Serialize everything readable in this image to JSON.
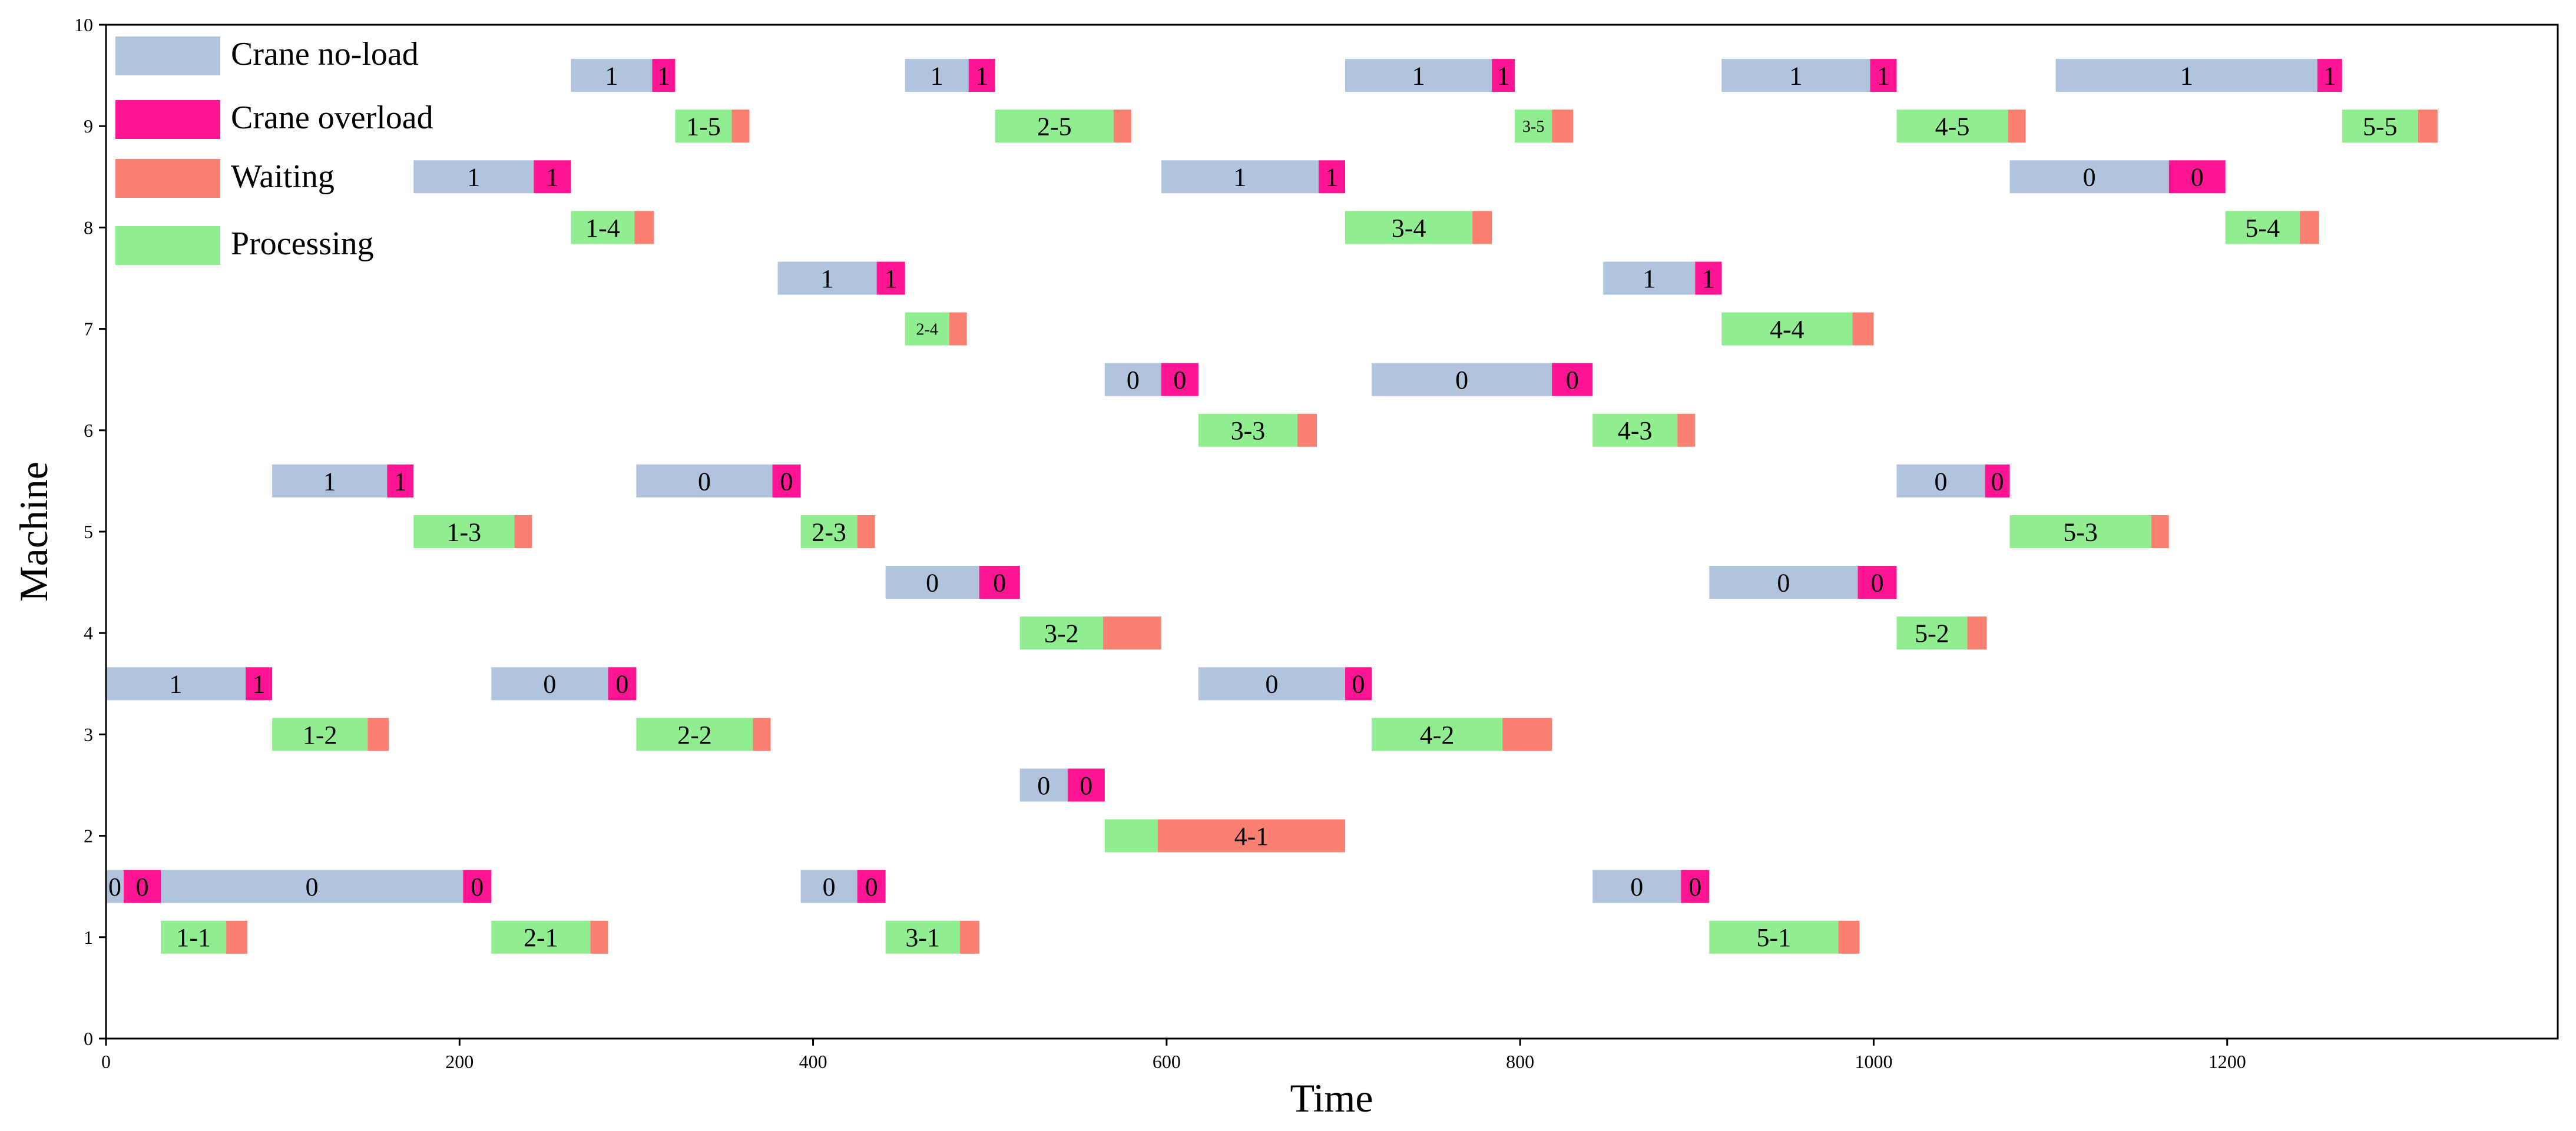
{
  "chart_data": {
    "type": "gantt",
    "title": "",
    "xlabel": "Time",
    "ylabel": "Machine",
    "xlim": [
      0,
      1387
    ],
    "ylim": [
      0,
      10
    ],
    "x_ticks": [
      "0",
      "200",
      "400",
      "600",
      "800",
      "1000",
      "1200"
    ],
    "y_ticks": [
      "0",
      "1",
      "2",
      "3",
      "4",
      "5",
      "6",
      "7",
      "8",
      "9",
      "10"
    ],
    "legend": [
      {
        "key": "no_load",
        "label": "Crane no-load",
        "color": "#b0c4de"
      },
      {
        "key": "overload",
        "label": "Crane overload",
        "color": "#ff1493"
      },
      {
        "key": "waiting",
        "label": "Waiting",
        "color": "#fa8072"
      },
      {
        "key": "processing",
        "label": "Processing",
        "color": "#90ee90"
      }
    ],
    "bars": [
      {
        "cat": "processing",
        "machine": 1,
        "start": 31,
        "end": 68,
        "label": "1-1"
      },
      {
        "cat": "waiting",
        "machine": 1,
        "start": 68,
        "end": 80,
        "label": ""
      },
      {
        "cat": "processing",
        "machine": 1,
        "start": 218,
        "end": 274,
        "label": "2-1"
      },
      {
        "cat": "waiting",
        "machine": 1,
        "start": 274,
        "end": 284,
        "label": ""
      },
      {
        "cat": "processing",
        "machine": 1,
        "start": 441,
        "end": 483,
        "label": "3-1"
      },
      {
        "cat": "waiting",
        "machine": 1,
        "start": 483,
        "end": 494,
        "label": ""
      },
      {
        "cat": "processing",
        "machine": 1,
        "start": 907,
        "end": 980,
        "label": "5-1"
      },
      {
        "cat": "waiting",
        "machine": 1,
        "start": 980,
        "end": 992,
        "label": ""
      },
      {
        "cat": "no_load",
        "machine": 1.5,
        "start": 0,
        "end": 10,
        "label": "0"
      },
      {
        "cat": "overload",
        "machine": 1.5,
        "start": 10,
        "end": 31,
        "label": "0"
      },
      {
        "cat": "no_load",
        "machine": 1.5,
        "start": 31,
        "end": 202,
        "label": "0"
      },
      {
        "cat": "overload",
        "machine": 1.5,
        "start": 202,
        "end": 218,
        "label": "0"
      },
      {
        "cat": "no_load",
        "machine": 1.5,
        "start": 393,
        "end": 425,
        "label": "0"
      },
      {
        "cat": "overload",
        "machine": 1.5,
        "start": 425,
        "end": 441,
        "label": "0"
      },
      {
        "cat": "no_load",
        "machine": 1.5,
        "start": 841,
        "end": 891,
        "label": "0"
      },
      {
        "cat": "overload",
        "machine": 1.5,
        "start": 891,
        "end": 907,
        "label": "0"
      },
      {
        "cat": "processing",
        "machine": 2,
        "start": 565,
        "end": 595,
        "label": ""
      },
      {
        "cat": "waiting",
        "machine": 2,
        "start": 595,
        "end": 701,
        "label": "4-1"
      },
      {
        "cat": "no_load",
        "machine": 2.5,
        "start": 517,
        "end": 544,
        "label": "0"
      },
      {
        "cat": "overload",
        "machine": 2.5,
        "start": 544,
        "end": 565,
        "label": "0"
      },
      {
        "cat": "processing",
        "machine": 3,
        "start": 94,
        "end": 148,
        "label": "1-2"
      },
      {
        "cat": "waiting",
        "machine": 3,
        "start": 148,
        "end": 160,
        "label": ""
      },
      {
        "cat": "processing",
        "machine": 3,
        "start": 300,
        "end": 366,
        "label": "2-2"
      },
      {
        "cat": "waiting",
        "machine": 3,
        "start": 366,
        "end": 376,
        "label": ""
      },
      {
        "cat": "processing",
        "machine": 3,
        "start": 716,
        "end": 790,
        "label": "4-2"
      },
      {
        "cat": "waiting",
        "machine": 3,
        "start": 790,
        "end": 818,
        "label": ""
      },
      {
        "cat": "no_load",
        "machine": 3.5,
        "start": 0,
        "end": 79,
        "label": "1"
      },
      {
        "cat": "overload",
        "machine": 3.5,
        "start": 79,
        "end": 94,
        "label": "1"
      },
      {
        "cat": "no_load",
        "machine": 3.5,
        "start": 218,
        "end": 284,
        "label": "0"
      },
      {
        "cat": "overload",
        "machine": 3.5,
        "start": 284,
        "end": 300,
        "label": "0"
      },
      {
        "cat": "no_load",
        "machine": 3.5,
        "start": 618,
        "end": 701,
        "label": "0"
      },
      {
        "cat": "overload",
        "machine": 3.5,
        "start": 701,
        "end": 716,
        "label": "0"
      },
      {
        "cat": "processing",
        "machine": 4,
        "start": 517,
        "end": 564,
        "label": "3-2"
      },
      {
        "cat": "waiting",
        "machine": 4,
        "start": 564,
        "end": 597,
        "label": ""
      },
      {
        "cat": "processing",
        "machine": 4,
        "start": 1013,
        "end": 1053,
        "label": "5-2"
      },
      {
        "cat": "waiting",
        "machine": 4,
        "start": 1053,
        "end": 1064,
        "label": ""
      },
      {
        "cat": "no_load",
        "machine": 4.5,
        "start": 441,
        "end": 494,
        "label": "0"
      },
      {
        "cat": "overload",
        "machine": 4.5,
        "start": 494,
        "end": 517,
        "label": "0"
      },
      {
        "cat": "no_load",
        "machine": 4.5,
        "start": 907,
        "end": 991,
        "label": "0"
      },
      {
        "cat": "overload",
        "machine": 4.5,
        "start": 991,
        "end": 1013,
        "label": "0"
      },
      {
        "cat": "processing",
        "machine": 5,
        "start": 174,
        "end": 231,
        "label": "1-3"
      },
      {
        "cat": "waiting",
        "machine": 5,
        "start": 231,
        "end": 241,
        "label": ""
      },
      {
        "cat": "processing",
        "machine": 5,
        "start": 393,
        "end": 425,
        "label": "2-3"
      },
      {
        "cat": "waiting",
        "machine": 5,
        "start": 425,
        "end": 435,
        "label": ""
      },
      {
        "cat": "processing",
        "machine": 5,
        "start": 1077,
        "end": 1157,
        "label": "5-3"
      },
      {
        "cat": "waiting",
        "machine": 5,
        "start": 1157,
        "end": 1167,
        "label": ""
      },
      {
        "cat": "no_load",
        "machine": 5.5,
        "start": 94,
        "end": 159,
        "label": "1"
      },
      {
        "cat": "overload",
        "machine": 5.5,
        "start": 159,
        "end": 174,
        "label": "1"
      },
      {
        "cat": "no_load",
        "machine": 5.5,
        "start": 300,
        "end": 377,
        "label": "0"
      },
      {
        "cat": "overload",
        "machine": 5.5,
        "start": 377,
        "end": 393,
        "label": "0"
      },
      {
        "cat": "no_load",
        "machine": 5.5,
        "start": 1013,
        "end": 1063,
        "label": "0"
      },
      {
        "cat": "overload",
        "machine": 5.5,
        "start": 1063,
        "end": 1077,
        "label": "0"
      },
      {
        "cat": "processing",
        "machine": 6,
        "start": 618,
        "end": 674,
        "label": "3-3"
      },
      {
        "cat": "waiting",
        "machine": 6,
        "start": 674,
        "end": 685,
        "label": ""
      },
      {
        "cat": "processing",
        "machine": 6,
        "start": 841,
        "end": 889,
        "label": "4-3"
      },
      {
        "cat": "waiting",
        "machine": 6,
        "start": 889,
        "end": 899,
        "label": ""
      },
      {
        "cat": "no_load",
        "machine": 6.5,
        "start": 565,
        "end": 597,
        "label": "0"
      },
      {
        "cat": "overload",
        "machine": 6.5,
        "start": 597,
        "end": 618,
        "label": "0"
      },
      {
        "cat": "no_load",
        "machine": 6.5,
        "start": 716,
        "end": 818,
        "label": "0"
      },
      {
        "cat": "overload",
        "machine": 6.5,
        "start": 818,
        "end": 841,
        "label": "0"
      },
      {
        "cat": "processing",
        "machine": 7,
        "start": 452,
        "end": 477,
        "label": "2-4"
      },
      {
        "cat": "waiting",
        "machine": 7,
        "start": 477,
        "end": 487,
        "label": ""
      },
      {
        "cat": "processing",
        "machine": 7,
        "start": 914,
        "end": 988,
        "label": "4-4"
      },
      {
        "cat": "waiting",
        "machine": 7,
        "start": 988,
        "end": 1000,
        "label": ""
      },
      {
        "cat": "no_load",
        "machine": 7.5,
        "start": 380,
        "end": 436,
        "label": "1"
      },
      {
        "cat": "overload",
        "machine": 7.5,
        "start": 436,
        "end": 452,
        "label": "1"
      },
      {
        "cat": "no_load",
        "machine": 7.5,
        "start": 847,
        "end": 899,
        "label": "1"
      },
      {
        "cat": "overload",
        "machine": 7.5,
        "start": 899,
        "end": 914,
        "label": "1"
      },
      {
        "cat": "processing",
        "machine": 8,
        "start": 263,
        "end": 299,
        "label": "1-4"
      },
      {
        "cat": "waiting",
        "machine": 8,
        "start": 299,
        "end": 310,
        "label": ""
      },
      {
        "cat": "processing",
        "machine": 8,
        "start": 701,
        "end": 773,
        "label": "3-4"
      },
      {
        "cat": "waiting",
        "machine": 8,
        "start": 773,
        "end": 784,
        "label": ""
      },
      {
        "cat": "processing",
        "machine": 8,
        "start": 1199,
        "end": 1241,
        "label": "5-4"
      },
      {
        "cat": "waiting",
        "machine": 8,
        "start": 1241,
        "end": 1252,
        "label": ""
      },
      {
        "cat": "no_load",
        "machine": 8.5,
        "start": 174,
        "end": 242,
        "label": "1"
      },
      {
        "cat": "overload",
        "machine": 8.5,
        "start": 242,
        "end": 263,
        "label": "1"
      },
      {
        "cat": "no_load",
        "machine": 8.5,
        "start": 597,
        "end": 686,
        "label": "1"
      },
      {
        "cat": "overload",
        "machine": 8.5,
        "start": 686,
        "end": 701,
        "label": "1"
      },
      {
        "cat": "no_load",
        "machine": 8.5,
        "start": 1077,
        "end": 1167,
        "label": "0"
      },
      {
        "cat": "overload",
        "machine": 8.5,
        "start": 1167,
        "end": 1199,
        "label": "0"
      },
      {
        "cat": "processing",
        "machine": 9,
        "start": 322,
        "end": 354,
        "label": "1-5"
      },
      {
        "cat": "waiting",
        "machine": 9,
        "start": 354,
        "end": 364,
        "label": ""
      },
      {
        "cat": "processing",
        "machine": 9,
        "start": 503,
        "end": 570,
        "label": "2-5"
      },
      {
        "cat": "waiting",
        "machine": 9,
        "start": 570,
        "end": 580,
        "label": ""
      },
      {
        "cat": "processing",
        "machine": 9,
        "start": 797,
        "end": 818,
        "label": "3-5"
      },
      {
        "cat": "waiting",
        "machine": 9,
        "start": 818,
        "end": 830,
        "label": ""
      },
      {
        "cat": "processing",
        "machine": 9,
        "start": 1013,
        "end": 1076,
        "label": "4-5"
      },
      {
        "cat": "waiting",
        "machine": 9,
        "start": 1076,
        "end": 1086,
        "label": ""
      },
      {
        "cat": "processing",
        "machine": 9,
        "start": 1265,
        "end": 1308,
        "label": "5-5"
      },
      {
        "cat": "waiting",
        "machine": 9,
        "start": 1308,
        "end": 1319,
        "label": ""
      },
      {
        "cat": "no_load",
        "machine": 9.5,
        "start": 263,
        "end": 309,
        "label": "1"
      },
      {
        "cat": "overload",
        "machine": 9.5,
        "start": 309,
        "end": 322,
        "label": "1"
      },
      {
        "cat": "no_load",
        "machine": 9.5,
        "start": 452,
        "end": 488,
        "label": "1"
      },
      {
        "cat": "overload",
        "machine": 9.5,
        "start": 488,
        "end": 503,
        "label": "1"
      },
      {
        "cat": "no_load",
        "machine": 9.5,
        "start": 701,
        "end": 784,
        "label": "1"
      },
      {
        "cat": "overload",
        "machine": 9.5,
        "start": 784,
        "end": 797,
        "label": "1"
      },
      {
        "cat": "no_load",
        "machine": 9.5,
        "start": 914,
        "end": 998,
        "label": "1"
      },
      {
        "cat": "overload",
        "machine": 9.5,
        "start": 998,
        "end": 1013,
        "label": "1"
      },
      {
        "cat": "no_load",
        "machine": 9.5,
        "start": 1103,
        "end": 1251,
        "label": "1"
      },
      {
        "cat": "overload",
        "machine": 9.5,
        "start": 1251,
        "end": 1265,
        "label": "1"
      }
    ]
  }
}
